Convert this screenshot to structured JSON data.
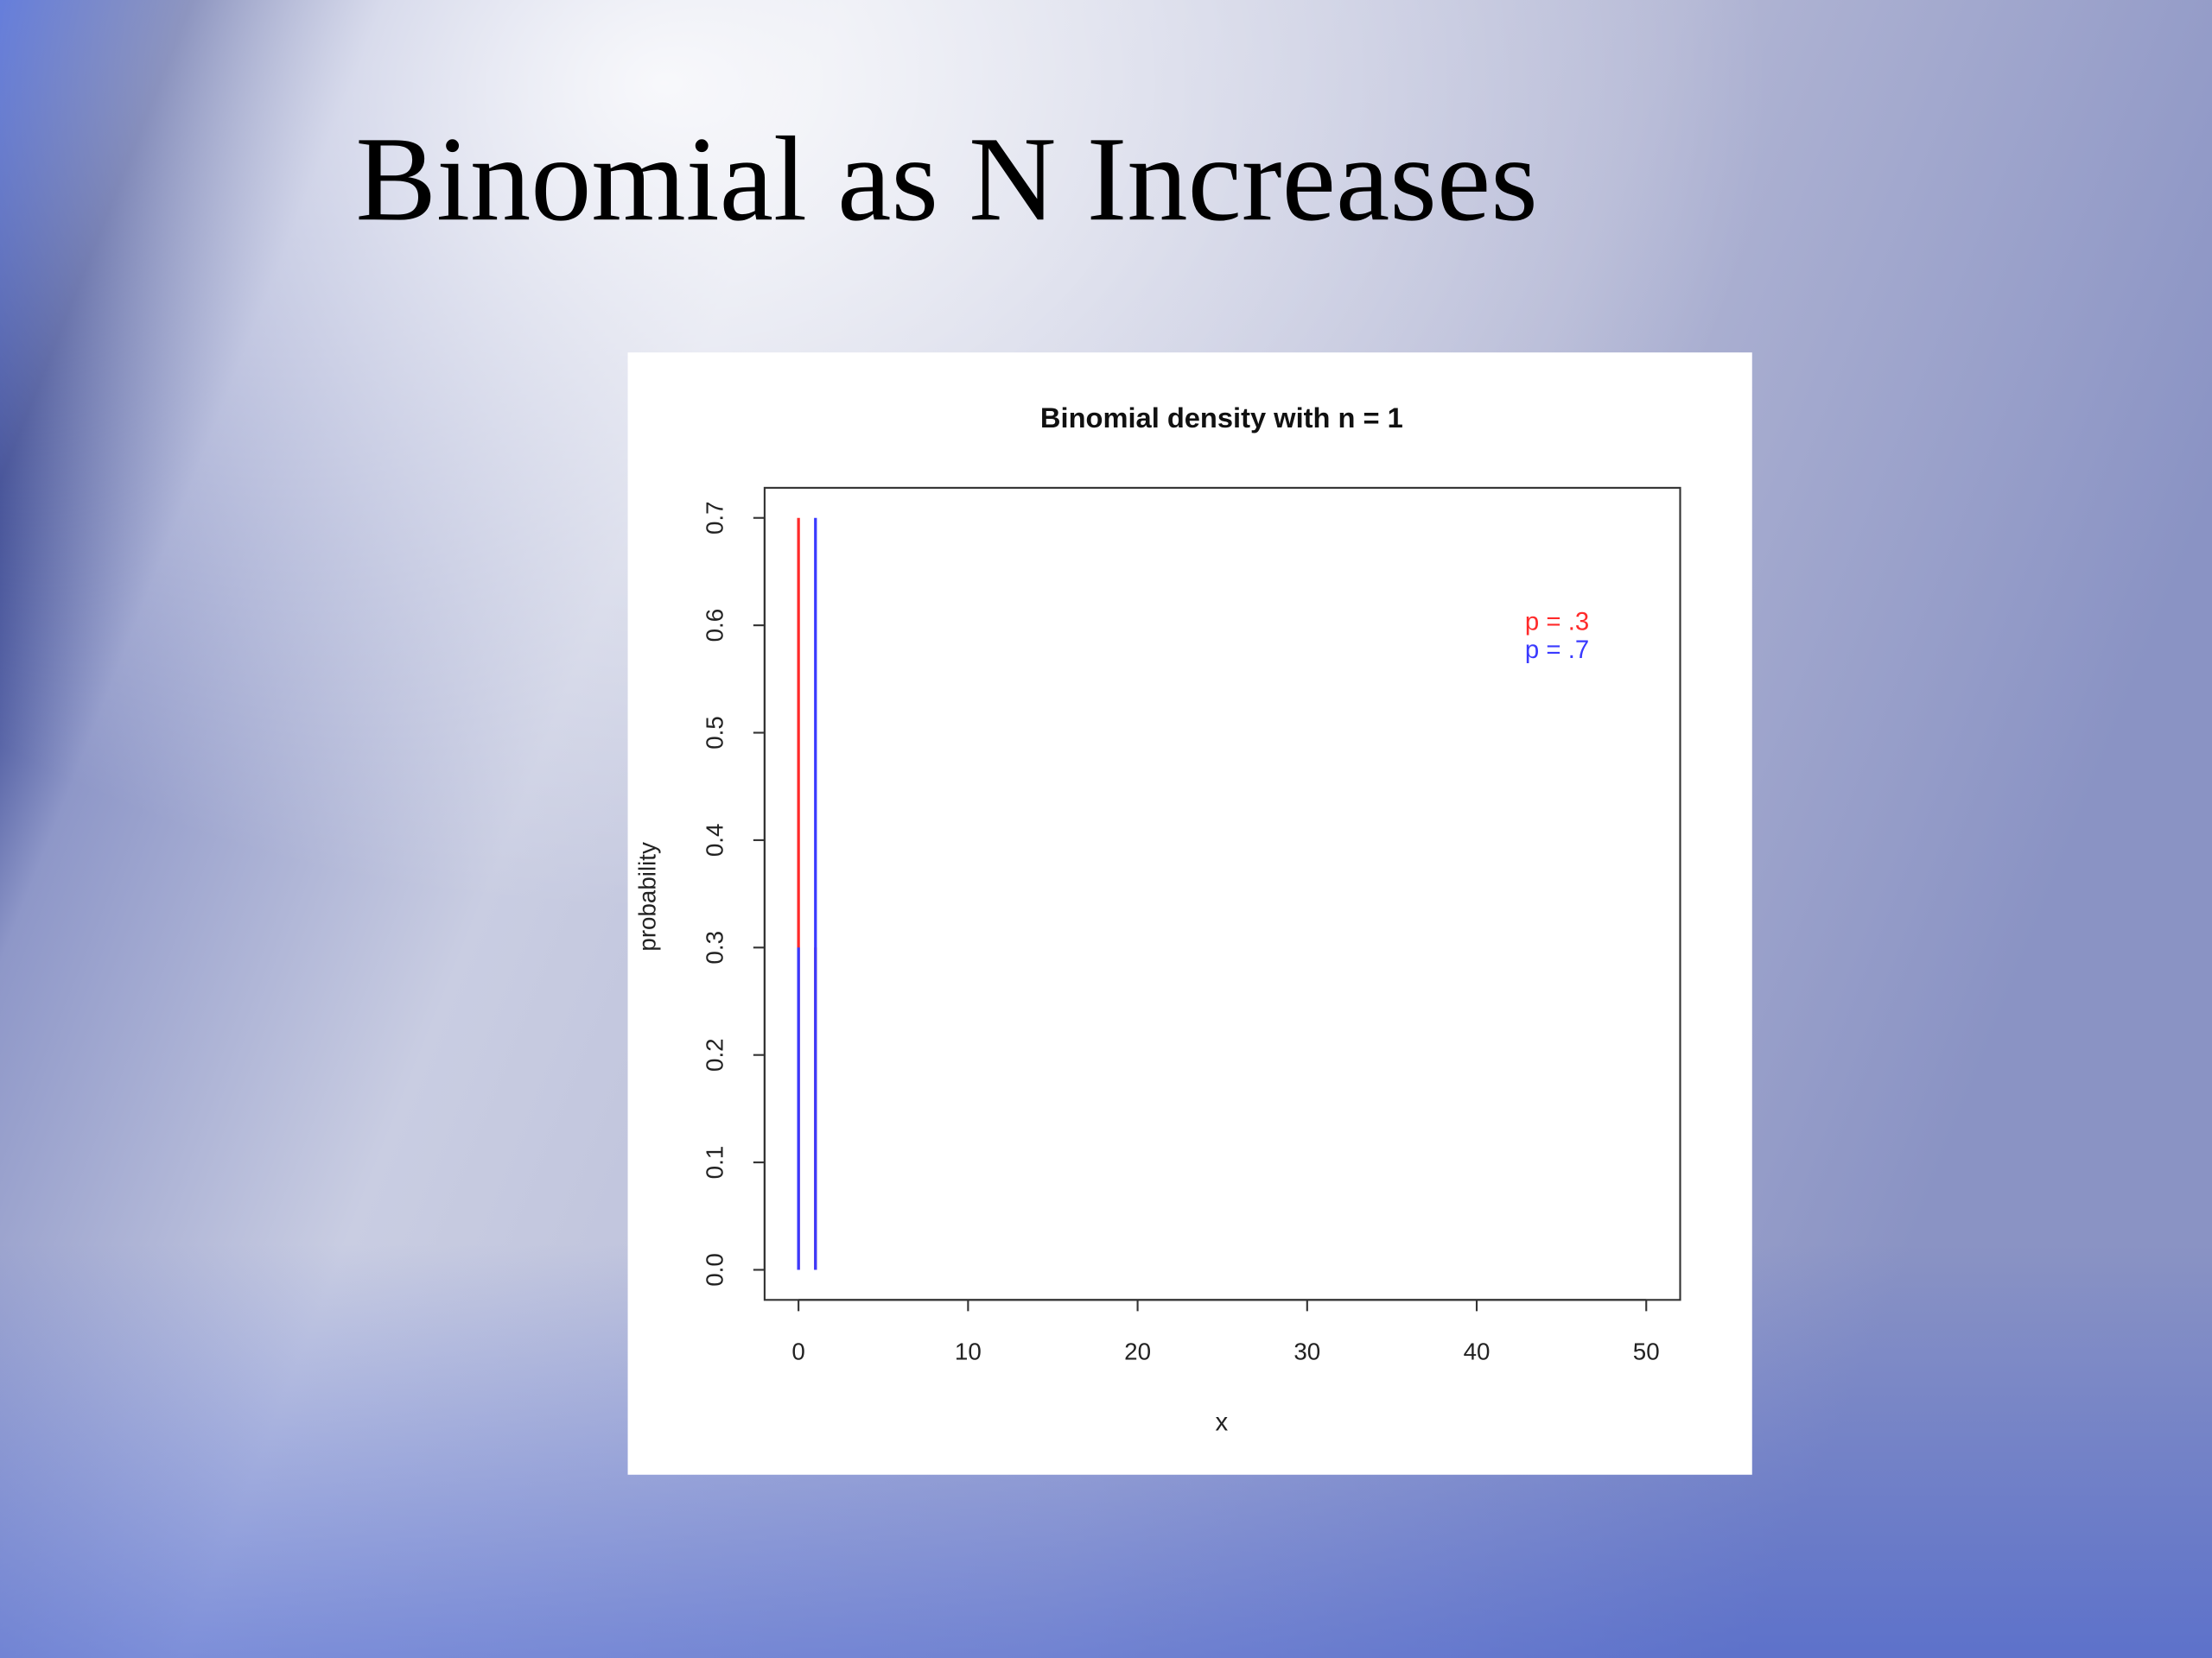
{
  "slide_title": "Binomial as N Increases",
  "chart_data": {
    "type": "stem",
    "title": "Binomial density with n =  1",
    "x_label": "x",
    "y_label": "probability",
    "x": [
      0,
      1
    ],
    "series": [
      {
        "name": "p = .3",
        "color": "#ff2a2a",
        "values": [
          0.7,
          0.3
        ]
      },
      {
        "name": "p = .7",
        "color": "#3a3aff",
        "values": [
          0.3,
          0.7
        ]
      }
    ],
    "xlim": [
      -2,
      52
    ],
    "xticks": [
      0,
      10,
      20,
      30,
      40,
      50
    ],
    "ylim": [
      -0.028,
      0.728
    ],
    "yticks": [
      {
        "value": 0,
        "label": "0.0"
      },
      0.1,
      0.2,
      0.3,
      0.4,
      0.5,
      0.6,
      0.7
    ],
    "legend": "top-right"
  }
}
